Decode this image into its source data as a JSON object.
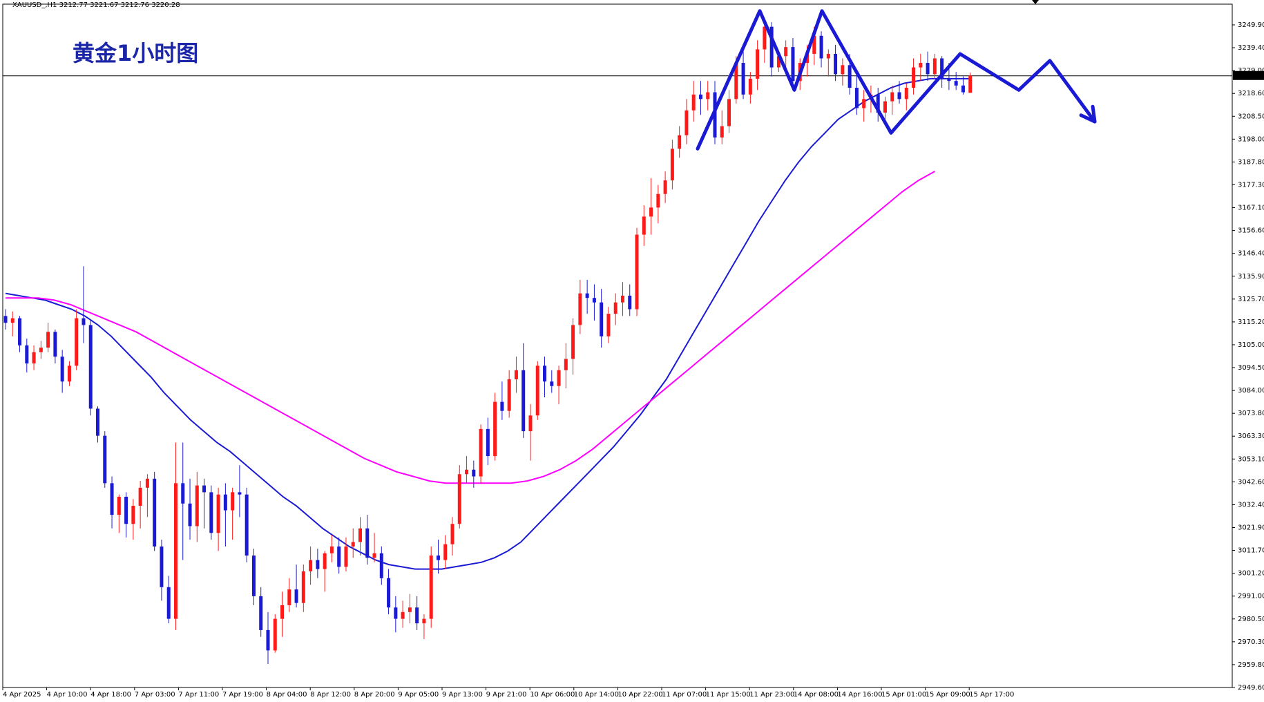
{
  "header_text": "XAUUSD_,H1  3212.77 3221.67 3212.76 3220.28",
  "chart_data": {
    "type": "candlestick",
    "title": "黄金1小时图",
    "symbol": "XAUUSD_",
    "timeframe": "H1",
    "ohlc_header": {
      "open": 3212.77,
      "high": 3221.67,
      "low": 3212.76,
      "close": 3220.28
    },
    "current_price_label": "3220.28",
    "ylim": [
      2949.6,
      3252.0
    ],
    "y_ticks": [
      "3249.90",
      "3239.40",
      "3229.00",
      "3218.60",
      "3208.50",
      "3198.00",
      "3187.80",
      "3177.30",
      "3167.10",
      "3156.60",
      "3146.40",
      "3135.90",
      "3125.70",
      "3115.20",
      "3105.00",
      "3094.50",
      "3084.00",
      "3073.80",
      "3063.30",
      "3053.10",
      "3042.60",
      "3032.40",
      "3021.90",
      "3011.70",
      "3001.20",
      "2991.00",
      "2980.50",
      "2970.30",
      "2959.80",
      "2949.60"
    ],
    "x_ticks": [
      "4 Apr 2025",
      "4 Apr 10:00",
      "4 Apr 18:00",
      "7 Apr 03:00",
      "7 Apr 11:00",
      "7 Apr 19:00",
      "8 Apr 04:00",
      "8 Apr 12:00",
      "8 Apr 20:00",
      "9 Apr 05:00",
      "9 Apr 13:00",
      "9 Apr 21:00",
      "10 Apr 06:00",
      "10 Apr 14:00",
      "10 Apr 22:00",
      "11 Apr 07:00",
      "11 Apr 15:00",
      "11 Apr 23:00",
      "14 Apr 08:00",
      "14 Apr 16:00",
      "15 Apr 01:00",
      "15 Apr 09:00",
      "15 Apr 17:00"
    ],
    "candles": [
      [
        3114,
        3117,
        3108,
        3111
      ],
      [
        3111,
        3116,
        3105,
        3113
      ],
      [
        3113,
        3114,
        3098,
        3101
      ],
      [
        3101,
        3104,
        3089,
        3093
      ],
      [
        3093,
        3101,
        3090,
        3098
      ],
      [
        3098,
        3103,
        3095,
        3100
      ],
      [
        3100,
        3111,
        3098,
        3107
      ],
      [
        3107,
        3108,
        3093,
        3096
      ],
      [
        3096,
        3099,
        3080,
        3085
      ],
      [
        3085,
        3094,
        3083,
        3092
      ],
      [
        3092,
        3117,
        3090,
        3113
      ],
      [
        3113,
        3136,
        3102,
        3110
      ],
      [
        3110,
        3112,
        3070,
        3073
      ],
      [
        3073,
        3074,
        3058,
        3061
      ],
      [
        3061,
        3063,
        3038,
        3040
      ],
      [
        3040,
        3043,
        3020,
        3026
      ],
      [
        3026,
        3035,
        3018,
        3034
      ],
      [
        3034,
        3036,
        3016,
        3022
      ],
      [
        3022,
        3033,
        3015,
        3030
      ],
      [
        3030,
        3041,
        3020,
        3038
      ],
      [
        3038,
        3044,
        3025,
        3042
      ],
      [
        3042,
        3045,
        3010,
        3012
      ],
      [
        3012,
        3015,
        2988,
        2994
      ],
      [
        2994,
        2999,
        2978,
        2980
      ],
      [
        2980,
        3058,
        2975,
        3040
      ],
      [
        3040,
        3058,
        3006,
        3031
      ],
      [
        3031,
        3042,
        3015,
        3021
      ],
      [
        3021,
        3045,
        3014,
        3039
      ],
      [
        3039,
        3042,
        3020,
        3036
      ],
      [
        3036,
        3039,
        3015,
        3018
      ],
      [
        3018,
        3038,
        3010,
        3035
      ],
      [
        3035,
        3040,
        3012,
        3028
      ],
      [
        3028,
        3038,
        3015,
        3036
      ],
      [
        3036,
        3048,
        3025,
        3035
      ],
      [
        3035,
        3038,
        3005,
        3008
      ],
      [
        3008,
        3011,
        2986,
        2990
      ],
      [
        2990,
        2994,
        2972,
        2975
      ],
      [
        2975,
        2983,
        2960,
        2966
      ],
      [
        2966,
        2982,
        2965,
        2980
      ],
      [
        2980,
        2992,
        2972,
        2986
      ],
      [
        2986,
        2998,
        2983,
        2993
      ],
      [
        2993,
        3004,
        2985,
        2987
      ],
      [
        2987,
        3004,
        2983,
        3001
      ],
      [
        3001,
        3012,
        2995,
        3006
      ],
      [
        3006,
        3011,
        2998,
        3002
      ],
      [
        3002,
        3010,
        2992,
        3009
      ],
      [
        3009,
        3017,
        3005,
        3012
      ],
      [
        3012,
        3016,
        3000,
        3003
      ],
      [
        3003,
        3016,
        3001,
        3012
      ],
      [
        3012,
        3020,
        3007,
        3014
      ],
      [
        3014,
        3025,
        3008,
        3020
      ],
      [
        3020,
        3026,
        3004,
        3007
      ],
      [
        3007,
        3018,
        3005,
        3009
      ],
      [
        3009,
        3012,
        2995,
        2998
      ],
      [
        2998,
        3002,
        2982,
        2985
      ],
      [
        2985,
        2990,
        2974,
        2980
      ],
      [
        2980,
        2988,
        2976,
        2983
      ],
      [
        2983,
        2991,
        2978,
        2985
      ],
      [
        2985,
        2990,
        2975,
        2978
      ],
      [
        2978,
        2982,
        2971,
        2980
      ],
      [
        2980,
        3012,
        2976,
        3008
      ],
      [
        3008,
        3015,
        3000,
        3006
      ],
      [
        3006,
        3017,
        3002,
        3013
      ],
      [
        3013,
        3025,
        3008,
        3022
      ],
      [
        3022,
        3048,
        3020,
        3044
      ],
      [
        3044,
        3052,
        3040,
        3046
      ],
      [
        3046,
        3050,
        3038,
        3043
      ],
      [
        3043,
        3066,
        3040,
        3064
      ],
      [
        3064,
        3069,
        3048,
        3052
      ],
      [
        3052,
        3080,
        3050,
        3076
      ],
      [
        3076,
        3085,
        3068,
        3072
      ],
      [
        3072,
        3090,
        3069,
        3086
      ],
      [
        3086,
        3096,
        3080,
        3090
      ],
      [
        3090,
        3102,
        3060,
        3063
      ],
      [
        3063,
        3075,
        3050,
        3070
      ],
      [
        3070,
        3094,
        3068,
        3092
      ],
      [
        3092,
        3096,
        3078,
        3085
      ],
      [
        3085,
        3090,
        3080,
        3083
      ],
      [
        3083,
        3092,
        3075,
        3090
      ],
      [
        3090,
        3102,
        3082,
        3095
      ],
      [
        3095,
        3113,
        3088,
        3110
      ],
      [
        3110,
        3130,
        3106,
        3124
      ],
      [
        3124,
        3130,
        3115,
        3122
      ],
      [
        3122,
        3128,
        3112,
        3120
      ],
      [
        3120,
        3126,
        3100,
        3105
      ],
      [
        3105,
        3118,
        3102,
        3115
      ],
      [
        3115,
        3124,
        3110,
        3120
      ],
      [
        3120,
        3129,
        3114,
        3123
      ],
      [
        3123,
        3128,
        3114,
        3117
      ],
      [
        3117,
        3153,
        3114,
        3150
      ],
      [
        3150,
        3163,
        3145,
        3158
      ],
      [
        3158,
        3175,
        3150,
        3162
      ],
      [
        3162,
        3172,
        3155,
        3168
      ],
      [
        3168,
        3178,
        3164,
        3174
      ],
      [
        3174,
        3192,
        3170,
        3188
      ],
      [
        3188,
        3198,
        3184,
        3194
      ],
      [
        3194,
        3210,
        3190,
        3205
      ],
      [
        3205,
        3218,
        3200,
        3212
      ],
      [
        3212,
        3218,
        3203,
        3210
      ],
      [
        3210,
        3218,
        3205,
        3213
      ],
      [
        3213,
        3218,
        3190,
        3193
      ],
      [
        3193,
        3205,
        3190,
        3198
      ],
      [
        3198,
        3214,
        3195,
        3210
      ],
      [
        3210,
        3229,
        3208,
        3226
      ],
      [
        3226,
        3233,
        3210,
        3212
      ],
      [
        3212,
        3222,
        3208,
        3219
      ],
      [
        3219,
        3236,
        3214,
        3232
      ],
      [
        3232,
        3246,
        3226,
        3242
      ],
      [
        3242,
        3244,
        3220,
        3224
      ],
      [
        3224,
        3230,
        3222,
        3229
      ],
      [
        3229,
        3236,
        3224,
        3233
      ],
      [
        3233,
        3237,
        3214,
        3218
      ],
      [
        3218,
        3228,
        3214,
        3226
      ],
      [
        3226,
        3234,
        3220,
        3230
      ],
      [
        3230,
        3242,
        3225,
        3238
      ],
      [
        3238,
        3240,
        3224,
        3228
      ],
      [
        3228,
        3232,
        3220,
        3230
      ],
      [
        3230,
        3234,
        3218,
        3221
      ],
      [
        3221,
        3228,
        3216,
        3225
      ],
      [
        3225,
        3230,
        3212,
        3215
      ],
      [
        3215,
        3222,
        3203,
        3206
      ],
      [
        3206,
        3214,
        3200,
        3210
      ],
      [
        3210,
        3216,
        3204,
        3212
      ],
      [
        3212,
        3215,
        3200,
        3204
      ],
      [
        3204,
        3211,
        3199,
        3209
      ],
      [
        3209,
        3216,
        3203,
        3213
      ],
      [
        3213,
        3218,
        3208,
        3210
      ],
      [
        3210,
        3217,
        3205,
        3215
      ],
      [
        3215,
        3228,
        3212,
        3224
      ],
      [
        3224,
        3230,
        3218,
        3226
      ],
      [
        3226,
        3231,
        3218,
        3221
      ],
      [
        3221,
        3230,
        3219,
        3228
      ],
      [
        3228,
        3229,
        3215,
        3219
      ],
      [
        3219,
        3226,
        3214,
        3218
      ],
      [
        3218,
        3222,
        3214,
        3216
      ],
      [
        3216,
        3220,
        3212,
        3213
      ],
      [
        3212.77,
        3221.67,
        3212.76,
        3220.28
      ]
    ],
    "series": [
      {
        "color": "#1a1ad4",
        "values": [
          3124,
          3123,
          3122,
          3121,
          3119,
          3117,
          3114,
          3110,
          3105,
          3099,
          3093,
          3087,
          3080,
          3074,
          3068,
          3063,
          3058,
          3054,
          3049,
          3044,
          3039,
          3034,
          3030,
          3025,
          3020,
          3016,
          3012,
          3009,
          3006,
          3004,
          3003,
          3002,
          3002,
          3002,
          3003,
          3004,
          3005,
          3007,
          3010,
          3014,
          3020,
          3026,
          3032,
          3038,
          3044,
          3050,
          3056,
          3063,
          3070,
          3078,
          3086,
          3096,
          3106,
          3116,
          3126,
          3136,
          3146,
          3156,
          3165,
          3174,
          3182,
          3189,
          3195,
          3201,
          3205,
          3209,
          3212,
          3215,
          3217,
          3218,
          3219,
          3219,
          3219,
          3219
        ]
      },
      {
        "color": "#ff00ff",
        "values": [
          3122,
          3122,
          3122,
          3121,
          3119,
          3116,
          3113,
          3110,
          3107,
          3103,
          3099,
          3095,
          3091,
          3087,
          3083,
          3079,
          3075,
          3071,
          3067,
          3063,
          3059,
          3055,
          3051,
          3048,
          3045,
          3043,
          3041,
          3040,
          3040,
          3040,
          3040,
          3040,
          3041,
          3043,
          3046,
          3050,
          3055,
          3061,
          3067,
          3073,
          3079,
          3085,
          3091,
          3097,
          3103,
          3109,
          3115,
          3121,
          3127,
          3133,
          3139,
          3145,
          3151,
          3157,
          3163,
          3169,
          3174,
          3178
        ]
      }
    ],
    "annotations": [
      {
        "type": "zigzag",
        "color": "#1a1ad4",
        "points": [
          [
            3188
          ],
          [
            3249
          ],
          [
            3214
          ],
          [
            3249
          ],
          [
            3195
          ],
          [
            3230
          ],
          [
            3214
          ],
          [
            3227
          ],
          [
            3200
          ]
        ]
      }
    ],
    "grid": false
  }
}
